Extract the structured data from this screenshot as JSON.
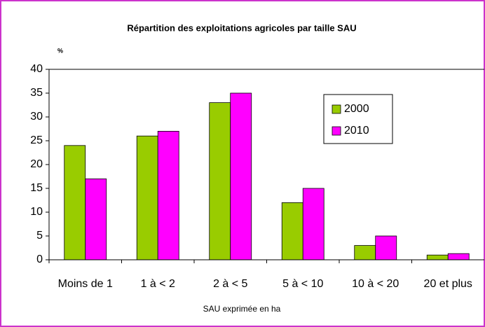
{
  "chart_data": {
    "type": "bar",
    "title": "Répartition des exploitations agricoles par taille SAU",
    "y_label": "%",
    "x_label": "SAU exprimée en ha",
    "categories": [
      "Moins de 1",
      "1 à < 2",
      "2 à < 5",
      "5 à < 10",
      "10 à < 20",
      "20 et plus"
    ],
    "series": [
      {
        "name": "2000",
        "color": "#99cc00",
        "values": [
          24,
          26,
          33,
          12,
          3,
          1
        ]
      },
      {
        "name": "2010",
        "color": "#ff00ff",
        "values": [
          17,
          27,
          35,
          15,
          5,
          1.3
        ]
      }
    ],
    "ylim": [
      0,
      40
    ],
    "yticks": [
      0,
      5,
      10,
      15,
      20,
      25,
      30,
      35,
      40
    ]
  }
}
